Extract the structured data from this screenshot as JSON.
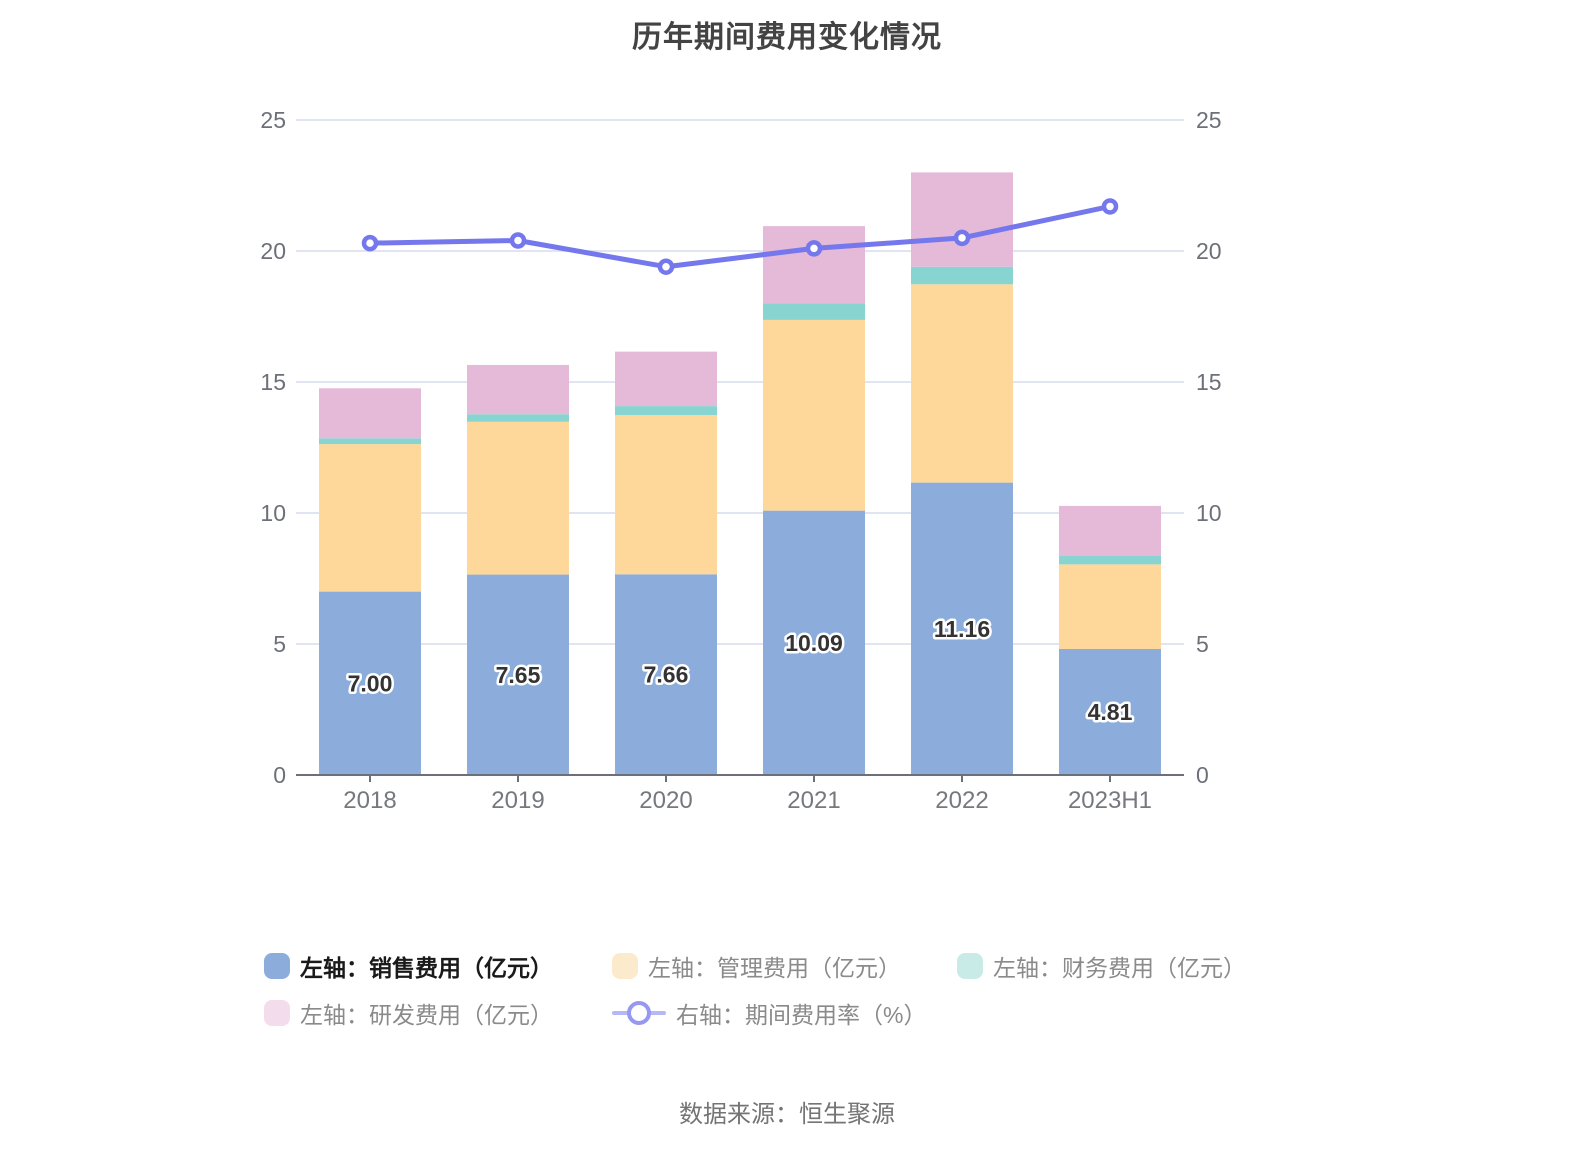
{
  "title": "历年期间费用变化情况",
  "source": "数据来源：恒生聚源",
  "legend": {
    "items": [
      {
        "label": "左轴：销售费用（亿元）",
        "swatch": "#8CADDB",
        "type": "bar",
        "emphasized": true
      },
      {
        "label": "左轴：管理费用（亿元）",
        "swatch": "#FCEACC",
        "type": "bar",
        "emphasized": false
      },
      {
        "label": "左轴：财务费用（亿元）",
        "swatch": "#C9EBE7",
        "type": "bar",
        "emphasized": false
      },
      {
        "label": "左轴：研发费用（亿元）",
        "swatch": "#F3DCEC",
        "type": "bar",
        "emphasized": false
      },
      {
        "label": "右轴：期间费用率（%）",
        "swatch": "#9799F0",
        "icon_line_color": "#B6B7F6",
        "icon_ring_color": "#9799F0",
        "type": "line",
        "emphasized": false
      }
    ]
  },
  "chart_data": {
    "type": "bar",
    "subtype": "stacked-bar-with-line",
    "title": "历年期间费用变化情况",
    "categories": [
      "2018",
      "2019",
      "2020",
      "2021",
      "2022",
      "2023H1"
    ],
    "series": [
      {
        "name": "左轴：销售费用（亿元）",
        "axis": "left",
        "type": "bar",
        "color": "#8CADDB",
        "values": [
          7.0,
          7.65,
          7.66,
          10.09,
          11.16,
          4.81
        ]
      },
      {
        "name": "左轴：管理费用（亿元）",
        "axis": "left",
        "type": "bar",
        "color": "#FDD89A",
        "values": [
          5.63,
          5.83,
          6.08,
          7.28,
          7.57,
          3.23
        ]
      },
      {
        "name": "左轴：财务费用（亿元）",
        "axis": "left",
        "type": "bar",
        "color": "#87D4D0",
        "values": [
          0.22,
          0.29,
          0.34,
          0.63,
          0.67,
          0.32
        ]
      },
      {
        "name": "左轴：研发费用（亿元）",
        "axis": "left",
        "type": "bar",
        "color": "#E5B9D8",
        "values": [
          1.91,
          1.88,
          2.08,
          2.95,
          3.6,
          1.91
        ]
      },
      {
        "name": "右轴：期间费用率（%）",
        "axis": "right",
        "type": "line",
        "color": "#7577EC",
        "values": [
          20.3,
          20.4,
          19.4,
          20.1,
          20.5,
          21.7
        ]
      }
    ],
    "bar_value_labels": [
      "7.00",
      "7.65",
      "7.66",
      "10.09",
      "11.16",
      "4.81"
    ],
    "bar_totals": [
      14.76,
      15.65,
      16.16,
      20.95,
      23.0,
      10.27
    ],
    "left_axis": {
      "min": 0,
      "max": 25,
      "ticks": [
        0,
        5,
        10,
        15,
        20,
        25
      ]
    },
    "right_axis": {
      "min": 0,
      "max": 25,
      "ticks": [
        0,
        5,
        10,
        15,
        20,
        25
      ]
    },
    "grid": true,
    "legend_position": "bottom",
    "colors": {
      "grid_line": "#E1E4F1",
      "axis_line": "#6E7079",
      "axis_label": "#6E7079",
      "x_label": "#75787d",
      "bar_label_fill": "#333333",
      "bar_label_stroke": "#ffffff",
      "title_color": "#434343"
    }
  }
}
